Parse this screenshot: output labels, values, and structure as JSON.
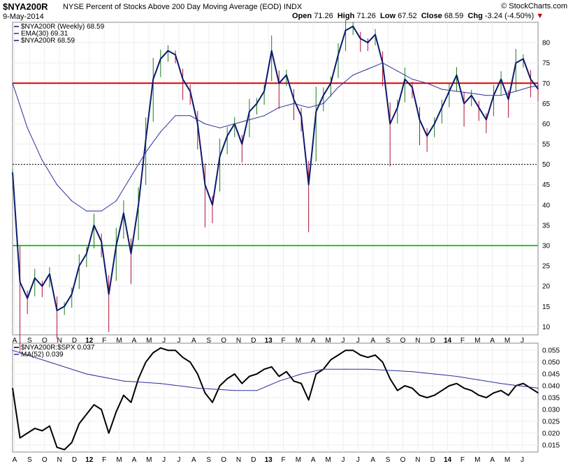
{
  "header": {
    "symbol": "$NYA200R",
    "description": "NYSE Percent of Stocks Above 200 Day Moving Average (EOD)",
    "exchange": "INDX",
    "date": "9-May-2014",
    "brand": "© StockCharts.com",
    "open_label": "Open",
    "open": "71.26",
    "high_label": "High",
    "high": "71.26",
    "low_label": "Low",
    "low": "67.52",
    "close_label": "Close",
    "close": "68.59",
    "chg_label": "Chg",
    "chg": "-3.24 (-4.50%)",
    "chg_arrow": "▼"
  },
  "colors": {
    "price": "#0b1a6e",
    "ema": "#2b2f9a",
    "upper_line": "#dd0000",
    "lower_line": "#22cc22",
    "ratio": "#000000",
    "ratio_ma": "#2b2f9a",
    "up_bar": "#1a7a1a",
    "down_bar": "#b01030"
  },
  "chart_data": [
    {
      "type": "line",
      "panel": "upper",
      "legend": [
        {
          "text": "$NYA200R (Weekly) 68.59",
          "color": "#0b1a6e"
        },
        {
          "text": "EMA(30) 69.31",
          "color": "#2b2f9a"
        },
        {
          "text": "$NYA200R 68.59",
          "color": "#0b1a6e"
        }
      ],
      "ylim": [
        8,
        85
      ],
      "yticks": [
        10,
        15,
        20,
        25,
        30,
        35,
        40,
        45,
        50,
        55,
        60,
        65,
        70,
        75,
        80
      ],
      "reference_lines": [
        {
          "value": 70,
          "color": "#dd0000",
          "style": "solid"
        },
        {
          "value": 50,
          "color": "#000000",
          "style": "dotted"
        },
        {
          "value": 30,
          "color": "#22cc22",
          "style": "solid"
        }
      ],
      "series": [
        {
          "name": "$NYA200R",
          "x": [
            0,
            2,
            4,
            6,
            8,
            10,
            12,
            14,
            16,
            18,
            20,
            22,
            24,
            26,
            28,
            30,
            32,
            34,
            36,
            38,
            40,
            42,
            44,
            46,
            48,
            50,
            52,
            54,
            56,
            58,
            60,
            62,
            64,
            66,
            68,
            70,
            72,
            74,
            76,
            78,
            80,
            82,
            84,
            86,
            88,
            90,
            92,
            94,
            96,
            98,
            100,
            102,
            104,
            106,
            108,
            110,
            112,
            114,
            116,
            118,
            120,
            122,
            124,
            126,
            128,
            130,
            132,
            134,
            136,
            138,
            140,
            142
          ],
          "values": [
            48,
            21,
            17,
            22,
            20,
            23,
            14,
            15,
            18,
            25,
            28,
            35,
            31,
            18,
            30,
            38,
            28,
            40,
            56,
            71,
            76,
            78,
            77,
            71,
            68,
            60,
            45,
            40,
            52,
            57,
            60,
            55,
            63,
            65,
            68,
            78,
            70,
            72,
            66,
            62,
            45,
            63,
            67,
            70,
            77,
            83,
            84,
            81,
            80,
            82,
            75,
            60,
            64,
            71,
            69,
            61,
            57,
            60,
            64,
            68,
            72,
            65,
            67,
            64,
            61,
            67,
            71,
            66,
            75,
            76,
            71,
            68.59
          ]
        },
        {
          "name": "EMA(30)",
          "x": [
            0,
            4,
            8,
            12,
            16,
            20,
            24,
            28,
            32,
            36,
            40,
            44,
            48,
            52,
            56,
            60,
            64,
            68,
            72,
            76,
            80,
            84,
            88,
            92,
            96,
            100,
            104,
            108,
            112,
            116,
            120,
            124,
            128,
            132,
            136,
            140,
            142
          ],
          "values": [
            70,
            59,
            51,
            45,
            41,
            38.5,
            38.5,
            41,
            47,
            53,
            58,
            62,
            62,
            60,
            59,
            60,
            61,
            62,
            64,
            65,
            64,
            65,
            69,
            72,
            73.5,
            75,
            73,
            71,
            70,
            68.5,
            68,
            67.5,
            67,
            67,
            68,
            69.1,
            69.31
          ]
        }
      ]
    },
    {
      "type": "line",
      "panel": "lower",
      "legend": [
        {
          "text": "$NYA200R:$SPX 0.037",
          "color": "#000000"
        },
        {
          "text": "MA(52) 0.039",
          "color": "#2b2f9a"
        }
      ],
      "ylim": [
        0.012,
        0.058
      ],
      "yticks": [
        0.015,
        0.02,
        0.025,
        0.03,
        0.035,
        0.04,
        0.045,
        0.05,
        0.055
      ],
      "ytick_labels": [
        "0.015",
        "0.020",
        "0.025",
        "0.030",
        "0.035",
        "0.040",
        "0.045",
        "0.050",
        "0.055"
      ],
      "series": [
        {
          "name": "$NYA200R:$SPX",
          "x": [
            0,
            2,
            4,
            6,
            8,
            10,
            12,
            14,
            16,
            18,
            20,
            22,
            24,
            26,
            28,
            30,
            32,
            34,
            36,
            38,
            40,
            42,
            44,
            46,
            48,
            50,
            52,
            54,
            56,
            58,
            60,
            62,
            64,
            66,
            68,
            70,
            72,
            74,
            76,
            78,
            80,
            82,
            84,
            86,
            88,
            90,
            92,
            94,
            96,
            98,
            100,
            102,
            104,
            106,
            108,
            110,
            112,
            114,
            116,
            118,
            120,
            122,
            124,
            126,
            128,
            130,
            132,
            134,
            136,
            138,
            140,
            142
          ],
          "values": [
            0.039,
            0.018,
            0.02,
            0.022,
            0.021,
            0.023,
            0.014,
            0.013,
            0.016,
            0.024,
            0.028,
            0.032,
            0.03,
            0.02,
            0.029,
            0.036,
            0.033,
            0.043,
            0.05,
            0.054,
            0.056,
            0.055,
            0.055,
            0.052,
            0.05,
            0.045,
            0.037,
            0.033,
            0.04,
            0.043,
            0.045,
            0.041,
            0.044,
            0.045,
            0.047,
            0.048,
            0.044,
            0.046,
            0.042,
            0.041,
            0.034,
            0.045,
            0.047,
            0.051,
            0.053,
            0.055,
            0.055,
            0.053,
            0.052,
            0.053,
            0.05,
            0.043,
            0.038,
            0.04,
            0.039,
            0.036,
            0.035,
            0.036,
            0.038,
            0.04,
            0.041,
            0.039,
            0.038,
            0.036,
            0.035,
            0.037,
            0.038,
            0.036,
            0.04,
            0.041,
            0.039,
            0.037
          ]
        },
        {
          "name": "MA(52)",
          "x": [
            0,
            10,
            20,
            30,
            40,
            50,
            60,
            66,
            72,
            78,
            84,
            90,
            96,
            102,
            108,
            114,
            120,
            126,
            132,
            138,
            142
          ],
          "values": [
            0.055,
            0.05,
            0.045,
            0.042,
            0.041,
            0.039,
            0.038,
            0.038,
            0.042,
            0.045,
            0.047,
            0.047,
            0.047,
            0.0465,
            0.046,
            0.045,
            0.044,
            0.0425,
            0.041,
            0.0398,
            0.039
          ]
        }
      ]
    }
  ],
  "x_axis": {
    "labels": [
      "A",
      "S",
      "O",
      "N",
      "D",
      "12",
      "F",
      "M",
      "A",
      "M",
      "J",
      "J",
      "A",
      "S",
      "O",
      "N",
      "D",
      "13",
      "F",
      "M",
      "A",
      "M",
      "J",
      "J",
      "A",
      "S",
      "O",
      "N",
      "D",
      "14",
      "F",
      "M",
      "A",
      "M",
      "J"
    ],
    "bold": [
      "12",
      "13",
      "14"
    ]
  }
}
